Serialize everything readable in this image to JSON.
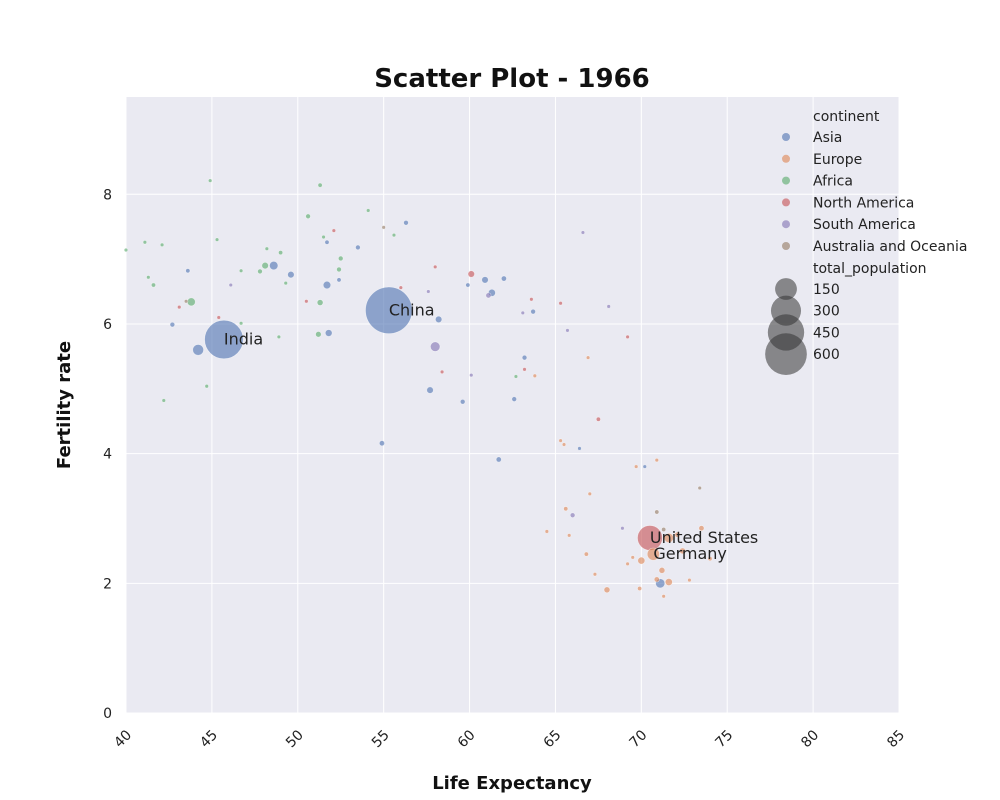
{
  "chart_data": {
    "type": "scatter",
    "title": "Scatter Plot - 1966",
    "xlabel": "Life Expectancy",
    "ylabel": "Fertility rate",
    "xlim": [
      40,
      85
    ],
    "ylim": [
      0,
      9.5
    ],
    "xticks": [
      40,
      45,
      50,
      55,
      60,
      65,
      70,
      75,
      80,
      85
    ],
    "yticks": [
      0,
      2,
      4,
      6,
      8
    ],
    "grid": true,
    "legend_position": "top-right",
    "legend_hue_title": "continent",
    "legend_size_title": "total_population",
    "size_legend": [
      150,
      300,
      450,
      600
    ],
    "background_color": "#eaeaf2",
    "series": [
      {
        "name": "Asia",
        "color": "#4c72b0",
        "points": [
          {
            "x": 45.7,
            "y": 5.76,
            "s": 510
          },
          {
            "x": 55.3,
            "y": 6.21,
            "s": 760
          },
          {
            "x": 44.2,
            "y": 5.6,
            "s": 30
          },
          {
            "x": 48.6,
            "y": 6.9,
            "s": 16
          },
          {
            "x": 49.6,
            "y": 6.76,
            "s": 8
          },
          {
            "x": 51.7,
            "y": 6.6,
            "s": 12
          },
          {
            "x": 51.8,
            "y": 5.86,
            "s": 9
          },
          {
            "x": 53.5,
            "y": 7.18,
            "s": 3
          },
          {
            "x": 56.3,
            "y": 7.56,
            "s": 3
          },
          {
            "x": 58.2,
            "y": 6.07,
            "s": 8
          },
          {
            "x": 57.7,
            "y": 4.98,
            "s": 8
          },
          {
            "x": 60.9,
            "y": 6.68,
            "s": 8
          },
          {
            "x": 61.3,
            "y": 6.48,
            "s": 10
          },
          {
            "x": 62.0,
            "y": 6.7,
            "s": 4
          },
          {
            "x": 63.2,
            "y": 5.48,
            "s": 3
          },
          {
            "x": 62.6,
            "y": 4.84,
            "s": 3
          },
          {
            "x": 63.7,
            "y": 6.19,
            "s": 3
          },
          {
            "x": 59.6,
            "y": 4.8,
            "s": 3
          },
          {
            "x": 54.9,
            "y": 4.16,
            "s": 4
          },
          {
            "x": 61.7,
            "y": 3.91,
            "s": 4
          },
          {
            "x": 71.1,
            "y": 2.0,
            "s": 20
          },
          {
            "x": 43.6,
            "y": 6.82,
            "s": 2
          },
          {
            "x": 42.7,
            "y": 5.99,
            "s": 3
          },
          {
            "x": 52.4,
            "y": 6.68,
            "s": 2
          },
          {
            "x": 51.7,
            "y": 7.26,
            "s": 2
          },
          {
            "x": 66.4,
            "y": 4.08,
            "s": 1
          },
          {
            "x": 70.2,
            "y": 3.8,
            "s": 1
          },
          {
            "x": 59.9,
            "y": 6.6,
            "s": 2
          }
        ]
      },
      {
        "name": "Europe",
        "color": "#dd8452",
        "points": [
          {
            "x": 70.7,
            "y": 2.45,
            "s": 40
          },
          {
            "x": 71.6,
            "y": 2.7,
            "s": 20
          },
          {
            "x": 71.6,
            "y": 2.02,
            "s": 10
          },
          {
            "x": 70.0,
            "y": 2.35,
            "s": 10
          },
          {
            "x": 68.0,
            "y": 1.9,
            "s": 6
          },
          {
            "x": 71.2,
            "y": 2.2,
            "s": 6
          },
          {
            "x": 72.4,
            "y": 2.5,
            "s": 6
          },
          {
            "x": 73.5,
            "y": 2.85,
            "s": 4
          },
          {
            "x": 74.0,
            "y": 2.38,
            "s": 2
          },
          {
            "x": 72.1,
            "y": 2.75,
            "s": 4
          },
          {
            "x": 70.9,
            "y": 2.06,
            "s": 4
          },
          {
            "x": 69.9,
            "y": 1.92,
            "s": 2
          },
          {
            "x": 66.8,
            "y": 2.45,
            "s": 2
          },
          {
            "x": 65.6,
            "y": 3.15,
            "s": 2
          },
          {
            "x": 67.0,
            "y": 3.38,
            "s": 1
          },
          {
            "x": 67.3,
            "y": 2.14,
            "s": 1
          },
          {
            "x": 69.2,
            "y": 2.3,
            "s": 1
          },
          {
            "x": 64.5,
            "y": 2.8,
            "s": 1
          },
          {
            "x": 63.8,
            "y": 5.2,
            "s": 1
          },
          {
            "x": 65.8,
            "y": 2.74,
            "s": 1
          },
          {
            "x": 69.7,
            "y": 3.8,
            "s": 1
          },
          {
            "x": 70.9,
            "y": 3.9,
            "s": 1
          },
          {
            "x": 71.3,
            "y": 1.8,
            "s": 1
          },
          {
            "x": 72.8,
            "y": 2.05,
            "s": 1
          },
          {
            "x": 65.3,
            "y": 4.2,
            "s": 1
          },
          {
            "x": 65.5,
            "y": 4.14,
            "s": 1
          },
          {
            "x": 66.9,
            "y": 5.48,
            "s": 1
          },
          {
            "x": 69.5,
            "y": 2.4,
            "s": 1
          }
        ]
      },
      {
        "name": "Africa",
        "color": "#55a868",
        "points": [
          {
            "x": 43.8,
            "y": 6.34,
            "s": 14
          },
          {
            "x": 48.1,
            "y": 6.9,
            "s": 8
          },
          {
            "x": 51.3,
            "y": 6.33,
            "s": 6
          },
          {
            "x": 51.2,
            "y": 5.84,
            "s": 5
          },
          {
            "x": 50.6,
            "y": 7.66,
            "s": 3
          },
          {
            "x": 51.3,
            "y": 8.14,
            "s": 2
          },
          {
            "x": 52.4,
            "y": 6.84,
            "s": 3
          },
          {
            "x": 52.5,
            "y": 7.01,
            "s": 3
          },
          {
            "x": 47.8,
            "y": 6.81,
            "s": 3
          },
          {
            "x": 41.6,
            "y": 6.6,
            "s": 2
          },
          {
            "x": 49.0,
            "y": 7.1,
            "s": 2
          },
          {
            "x": 40.0,
            "y": 7.14,
            "s": 1
          },
          {
            "x": 41.1,
            "y": 7.26,
            "s": 1
          },
          {
            "x": 42.1,
            "y": 7.22,
            "s": 1
          },
          {
            "x": 45.3,
            "y": 7.3,
            "s": 1
          },
          {
            "x": 44.9,
            "y": 8.21,
            "s": 1
          },
          {
            "x": 46.7,
            "y": 6.01,
            "s": 1
          },
          {
            "x": 48.9,
            "y": 5.8,
            "s": 1
          },
          {
            "x": 49.3,
            "y": 6.63,
            "s": 1
          },
          {
            "x": 51.5,
            "y": 7.34,
            "s": 1
          },
          {
            "x": 54.1,
            "y": 7.75,
            "s": 1
          },
          {
            "x": 55.6,
            "y": 7.37,
            "s": 1
          },
          {
            "x": 42.2,
            "y": 4.82,
            "s": 1
          },
          {
            "x": 44.7,
            "y": 5.04,
            "s": 1
          },
          {
            "x": 62.7,
            "y": 5.19,
            "s": 1
          },
          {
            "x": 46.7,
            "y": 6.82,
            "s": 1
          },
          {
            "x": 48.2,
            "y": 7.16,
            "s": 1
          },
          {
            "x": 41.3,
            "y": 6.72,
            "s": 1
          }
        ]
      },
      {
        "name": "North America",
        "color": "#c44e52",
        "points": [
          {
            "x": 70.5,
            "y": 2.7,
            "s": 200
          },
          {
            "x": 60.1,
            "y": 6.77,
            "s": 8
          },
          {
            "x": 67.5,
            "y": 4.53,
            "s": 2
          },
          {
            "x": 50.5,
            "y": 6.35,
            "s": 1
          },
          {
            "x": 52.1,
            "y": 7.44,
            "s": 1
          },
          {
            "x": 56.0,
            "y": 6.56,
            "s": 1
          },
          {
            "x": 58.0,
            "y": 6.88,
            "s": 1
          },
          {
            "x": 63.6,
            "y": 6.38,
            "s": 1
          },
          {
            "x": 65.3,
            "y": 6.32,
            "s": 1
          },
          {
            "x": 69.2,
            "y": 5.8,
            "s": 1
          },
          {
            "x": 43.1,
            "y": 6.26,
            "s": 1
          },
          {
            "x": 45.4,
            "y": 6.1,
            "s": 1
          },
          {
            "x": 58.4,
            "y": 5.26,
            "s": 1
          },
          {
            "x": 63.2,
            "y": 5.3,
            "s": 1
          }
        ]
      },
      {
        "name": "South America",
        "color": "#8172b3",
        "points": [
          {
            "x": 58.0,
            "y": 5.65,
            "s": 22
          },
          {
            "x": 61.1,
            "y": 6.44,
            "s": 4
          },
          {
            "x": 66.0,
            "y": 3.05,
            "s": 3
          },
          {
            "x": 57.6,
            "y": 6.5,
            "s": 1
          },
          {
            "x": 46.1,
            "y": 6.6,
            "s": 1
          },
          {
            "x": 63.1,
            "y": 6.17,
            "s": 1
          },
          {
            "x": 65.7,
            "y": 5.9,
            "s": 1
          },
          {
            "x": 68.1,
            "y": 6.27,
            "s": 1
          },
          {
            "x": 68.9,
            "y": 2.85,
            "s": 1
          },
          {
            "x": 66.6,
            "y": 7.41,
            "s": 1
          },
          {
            "x": 60.1,
            "y": 5.21,
            "s": 1
          }
        ]
      },
      {
        "name": "Australia and Oceania",
        "color": "#937860",
        "points": [
          {
            "x": 70.9,
            "y": 3.1,
            "s": 2
          },
          {
            "x": 71.3,
            "y": 2.83,
            "s": 2
          },
          {
            "x": 73.4,
            "y": 3.47,
            "s": 1
          },
          {
            "x": 55.0,
            "y": 7.49,
            "s": 1
          },
          {
            "x": 43.5,
            "y": 6.35,
            "s": 1
          }
        ]
      }
    ],
    "annotations": [
      {
        "text": "India",
        "x": 45.7,
        "y": 5.76
      },
      {
        "text": "China",
        "x": 55.3,
        "y": 6.21
      },
      {
        "text": "United States",
        "x": 70.5,
        "y": 2.7
      },
      {
        "text": "Germany",
        "x": 70.7,
        "y": 2.45
      }
    ]
  }
}
